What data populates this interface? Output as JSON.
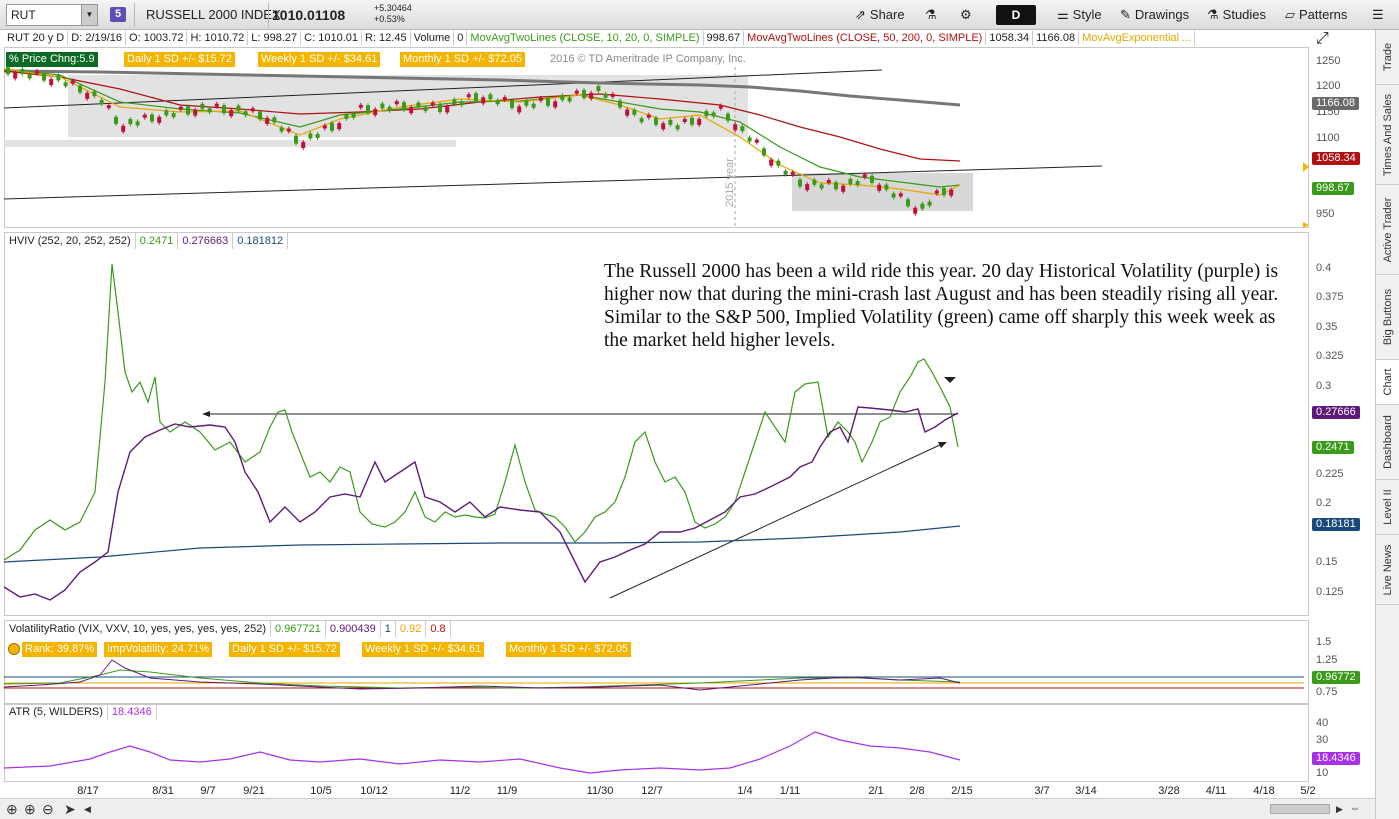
{
  "toolbar": {
    "symbol": "RUT",
    "link_group": "5",
    "index_name": "RUSSELL 2000 INDEX",
    "last_price": "1010.01108",
    "net_change": "+5.30464",
    "pct_change": "+0.53%",
    "share": "Share",
    "aggregation": "D",
    "style": "Style",
    "drawings": "Drawings",
    "studies": "Studies",
    "patterns": "Patterns"
  },
  "header": {
    "period": "RUT 20 y D",
    "date": "D: 2/19/16",
    "open": "O: 1003.72",
    "high": "H: 1010.72",
    "low": "L: 998.27",
    "close": "C: 1010.01",
    "range": "R: 12.45",
    "volume": "Volume",
    "volume_val": "0",
    "ma1": "MovAvgTwoLines (CLOSE, 10, 20, 0, SIMPLE)",
    "ma1_val": "998.67",
    "ma2": "MovAvgTwoLines (CLOSE, 50, 200, 0, SIMPLE)",
    "ma2_val": "1058.34",
    "ma2_val2": "1166.08",
    "ma3": "MovAvgExponential ..."
  },
  "price_pane": {
    "label_pct": "% Price Chng:5.9",
    "label_daily": "Daily 1 SD +/- $15.72",
    "label_weekly": "Weekly 1 SD +/- $34.61",
    "label_monthly": "Monthly 1 SD +/- $72.05",
    "copyright": "2016 © TD Ameritrade IP Company, Inc.",
    "year_marker": "2015 year",
    "y_ticks": [
      "1250",
      "1200",
      "1150",
      "1100",
      "1050",
      "950"
    ],
    "tags": [
      {
        "value": "1166.08",
        "color": "#6a6a6a"
      },
      {
        "value": "1058.34",
        "color": "#b01010"
      },
      {
        "value": "998.67",
        "color": "#3a9a1a"
      }
    ]
  },
  "hviv_pane": {
    "title": "HVIV (252, 20, 252, 252)",
    "iv_val": "0.2471",
    "hv_val": "0.276663",
    "ma_val": "0.181812",
    "y_ticks": [
      "0.4",
      "0.375",
      "0.35",
      "0.325",
      "0.3",
      "0.25",
      "0.225",
      "0.2",
      "0.175",
      "0.15",
      "0.125"
    ],
    "tags": [
      {
        "value": "0.27666",
        "color": "#5e1a7a"
      },
      {
        "value": "0.2471",
        "color": "#3a9a1a"
      },
      {
        "value": "0.18181",
        "color": "#1a4a7a"
      }
    ]
  },
  "annotation": "The Russell 2000 has been a wild ride this year.  20 day Historical Volatility (purple) is higher now that during the mini-crash last August and has been steadily rising all year.  Similar to the S&P 500, Implied Volatility (green) came off sharply this week week as the market held higher levels.",
  "vr_pane": {
    "title": "VolatilityRatio (VIX, VXV, 10, yes, yes, yes, yes, 252)",
    "v1": "0.967721",
    "v2": "0.900439",
    "v3": "1",
    "v4": "0.92",
    "v5": "0.8",
    "rank": "Rank: 39.87%",
    "impvol": "ImpVolatility: 24.71%",
    "daily": "Daily 1 SD +/- $15.72",
    "weekly": "Weekly 1 SD +/- $34.61",
    "monthly": "Monthly 1 SD +/- $72.05",
    "y_ticks": [
      "1.5",
      "1.25",
      "0.75"
    ],
    "tag": "0.96772"
  },
  "atr_pane": {
    "title": "ATR (5, WILDERS)",
    "val": "18.4346",
    "y_ticks": [
      "40",
      "30",
      "20",
      "10"
    ],
    "tag": "18.4346"
  },
  "x_axis": [
    "8/17",
    "8/31",
    "9/7",
    "9/21",
    "10/5",
    "10/12",
    "11/2",
    "11/9",
    "11/30",
    "12/7",
    "1/4",
    "1/11",
    "2/1",
    "2/8",
    "2/15",
    "3/7",
    "3/14",
    "3/28",
    "4/11",
    "4/18",
    "5/2"
  ],
  "side_tabs": [
    "Trade",
    "Times And Sales",
    "Active Trader",
    "Big Buttons",
    "Chart",
    "Dashboard",
    "Level II",
    "Live News"
  ],
  "colors": {
    "hv": "#5e1a7a",
    "iv": "#3a9a1a",
    "ma": "#1a4a7a",
    "ma50": "#b01010",
    "ma200": "#777777",
    "ma10": "#e8a600",
    "up": "#3a9a1a",
    "down": "#c0103a"
  }
}
